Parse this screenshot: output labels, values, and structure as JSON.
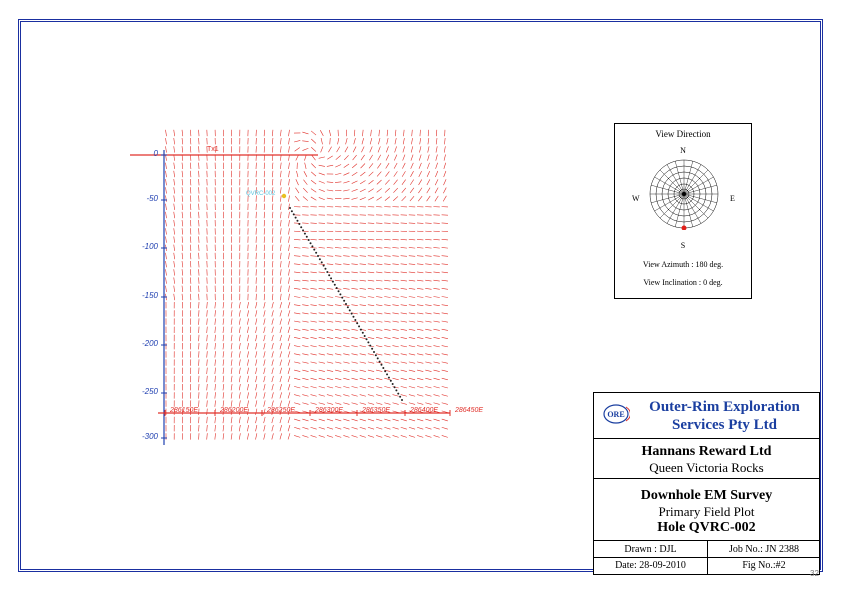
{
  "plot": {
    "depth_labels": [
      "0",
      "-50",
      "-100",
      "-150",
      "-200",
      "-250",
      "-300"
    ],
    "easting_labels": [
      "286150E",
      "286200E",
      "286250E",
      "286300E",
      "286350E",
      "286400E",
      "286450E"
    ],
    "hole_label": "QVRC-002",
    "ref_label": "Tx1",
    "colors": {
      "field_vectors": "#e0302a",
      "axis": "#1f3fb0",
      "trace": "#222222",
      "collar": "#e8c020"
    }
  },
  "view_direction": {
    "title": "View Direction",
    "north": "N",
    "south": "S",
    "east": "E",
    "west": "W",
    "azimuth_text": "View Azimuth : 180 deg.",
    "inclination_text": "View Inclination : 0 deg."
  },
  "title_block": {
    "logo_text": "ORE",
    "company_line1": "Outer-Rim Exploration",
    "company_line2": "Services Pty Ltd",
    "client": "Hannans Reward Ltd",
    "project": "Queen Victoria Rocks",
    "survey": "Downhole EM Survey",
    "plot_type": "Primary Field Plot",
    "hole": "Hole QVRC-002",
    "drawn": "Drawn : DJL",
    "job_no": "Job No.: JN 2388",
    "date": "Date: 28-09-2010",
    "fig_no": "Fig No.:#2"
  },
  "page_number": "32"
}
